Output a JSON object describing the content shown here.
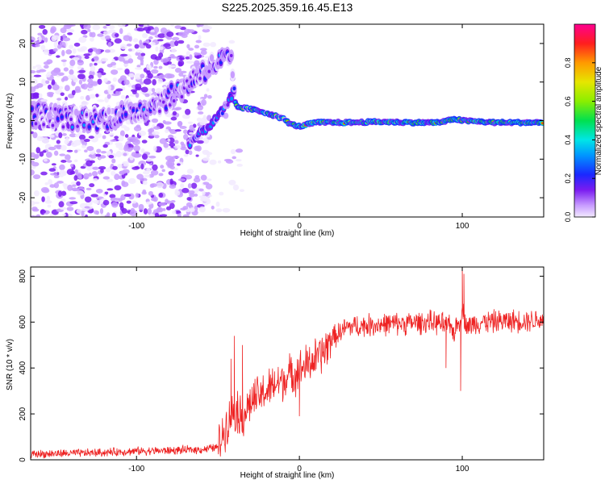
{
  "title": "S225.2025.359.16.45.E13",
  "chart_data": [
    {
      "type": "heatmap",
      "name": "spectrogram",
      "xlabel": "Height of straight line (km)",
      "ylabel": "Frequency (Hz)",
      "xlim": [
        -165,
        150
      ],
      "ylim": [
        -25,
        25
      ],
      "xticks": [
        -100,
        0,
        100
      ],
      "yticks": [
        -20,
        -10,
        0,
        10,
        20
      ],
      "colorbar": {
        "label": "Normalized spectral amplitude",
        "range": [
          0,
          1
        ],
        "ticks": [
          "0.0",
          "0.2",
          "0.4",
          "0.6",
          "0.8"
        ]
      },
      "ridge": {
        "x": [
          -160,
          -140,
          -120,
          -100,
          -90,
          -80,
          -70,
          -62,
          -55,
          -48,
          -42,
          -40,
          -38,
          -30,
          -20,
          -10,
          -5,
          0,
          10,
          30,
          50,
          70,
          85,
          90,
          95,
          100,
          120,
          140,
          150
        ],
        "freq": [
          1.5,
          0.5,
          0.5,
          2.5,
          4,
          6,
          9,
          12,
          14,
          15.5,
          16,
          5,
          3.5,
          3,
          2,
          0.5,
          -1,
          -1.5,
          -0.5,
          -0.5,
          -0.3,
          -0.5,
          -0.5,
          -0.2,
          0.5,
          0,
          -0.5,
          -0.5,
          -0.5
        ]
      },
      "ridge_lower": {
        "x": [
          -68,
          -60,
          -52,
          -46,
          -42,
          -40
        ],
        "freq": [
          -6,
          -3,
          0,
          3,
          6,
          8
        ]
      }
    },
    {
      "type": "line",
      "name": "snr",
      "xlabel": "Height of straight line (km)",
      "ylabel": "SNR (10 * v/v)",
      "xlim": [
        -165,
        150
      ],
      "ylim": [
        0,
        840
      ],
      "xticks": [
        -100,
        0,
        100
      ],
      "yticks": [
        0,
        200,
        400,
        600,
        800
      ],
      "color": "#ee2222",
      "envelope": {
        "x": [
          -165,
          -140,
          -120,
          -100,
          -80,
          -60,
          -50,
          -45,
          -40,
          -35,
          -30,
          -20,
          -10,
          0,
          10,
          15,
          20,
          30,
          50,
          80,
          90,
          95,
          98,
          100,
          103,
          110,
          130,
          150
        ],
        "snr": [
          25,
          28,
          32,
          38,
          40,
          45,
          55,
          150,
          220,
          180,
          250,
          300,
          350,
          390,
          440,
          470,
          530,
          580,
          590,
          600,
          590,
          560,
          600,
          650,
          580,
          600,
          605,
          610
        ]
      },
      "spikes": {
        "x": [
          -42,
          -40,
          -38,
          -35,
          0,
          88,
          90,
          97,
          99,
          100,
          101,
          102
        ],
        "snr": [
          440,
          540,
          300,
          500,
          190,
          560,
          400,
          570,
          300,
          840,
          810,
          560
        ]
      }
    }
  ]
}
